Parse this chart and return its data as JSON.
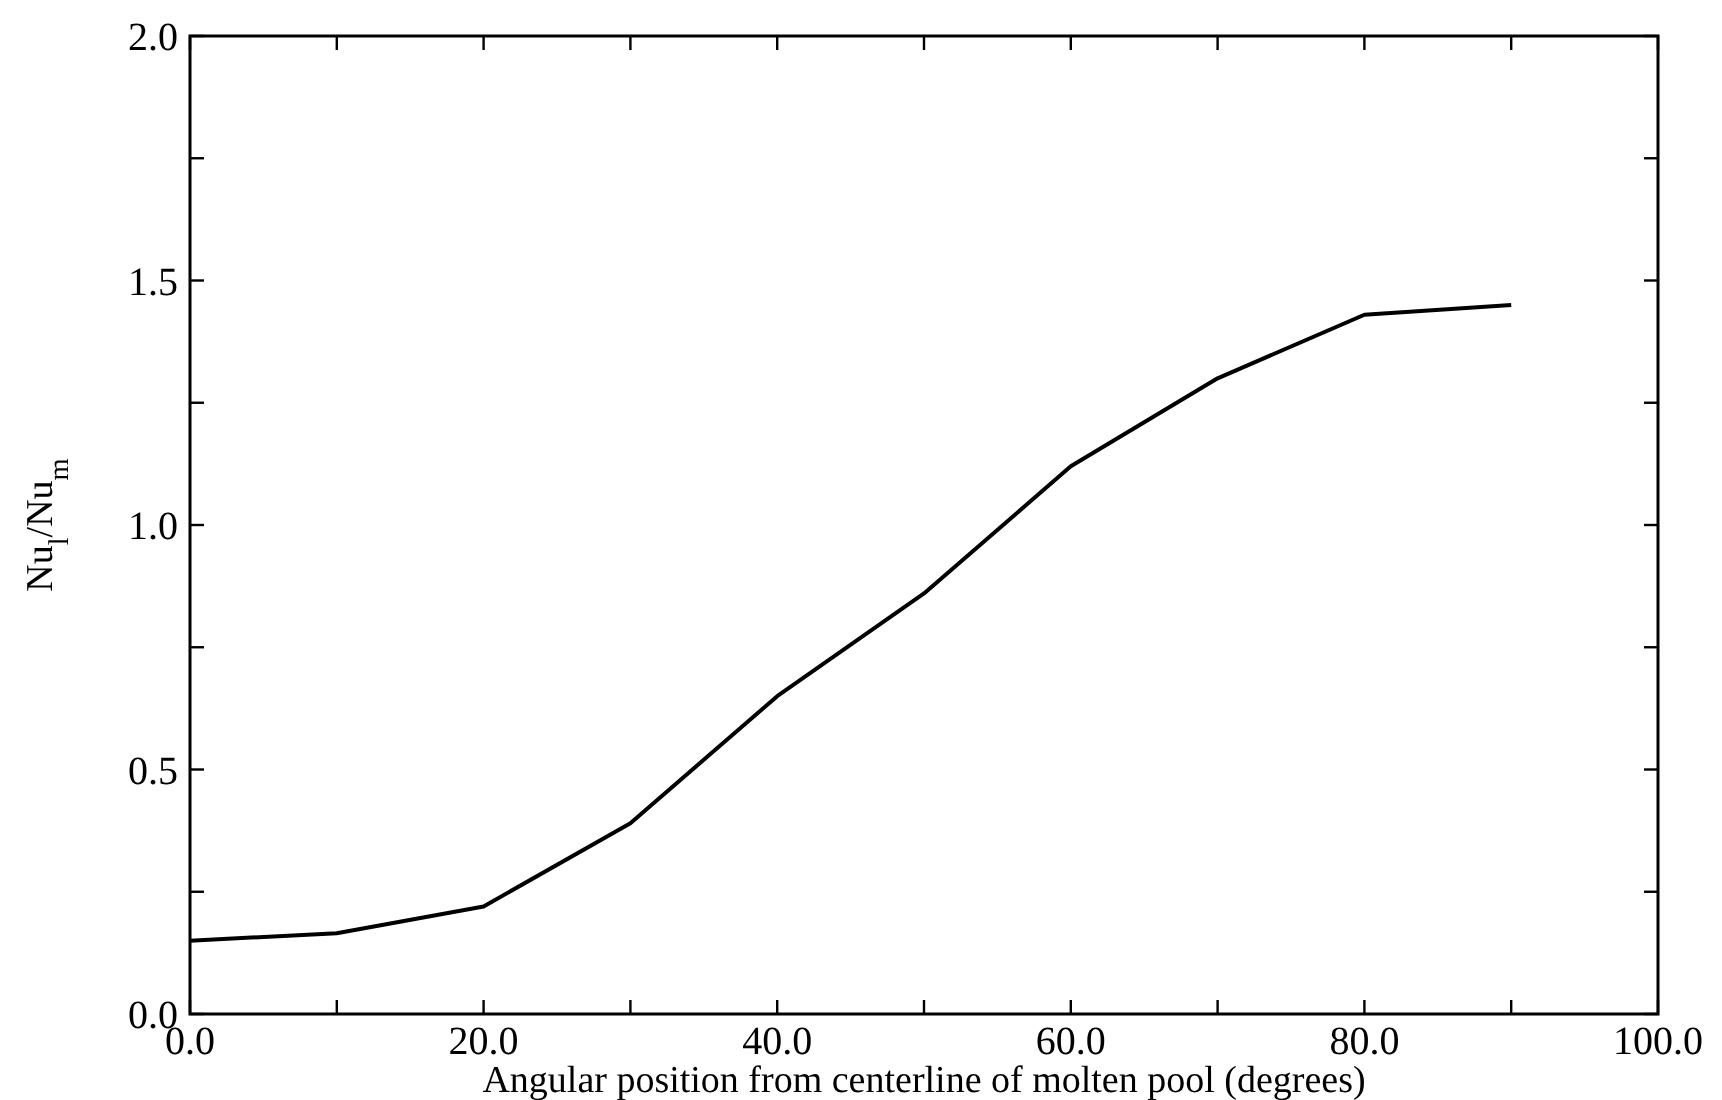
{
  "chart_data": {
    "type": "line",
    "xlabel": "Angular position from centerline of molten pool (degrees)",
    "ylabel": "Nu$_{l}$/Nu$_{m}$",
    "x": [
      0,
      10,
      20,
      30,
      40,
      50,
      60,
      70,
      80,
      90
    ],
    "series": [
      {
        "color": "#000000",
        "values": [
          0.15,
          0.165,
          0.22,
          0.39,
          0.65,
          0.86,
          1.12,
          1.3,
          1.43,
          1.45
        ]
      }
    ],
    "xlim": [
      0,
      100
    ],
    "ylim": [
      0,
      2
    ],
    "xticks": [
      {
        "value": 0,
        "label": "0.0"
      },
      {
        "value": 10,
        "label": null
      },
      {
        "value": 20,
        "label": "20.0"
      },
      {
        "value": 30,
        "label": null
      },
      {
        "value": 40,
        "label": "40.0"
      },
      {
        "value": 50,
        "label": null
      },
      {
        "value": 60,
        "label": "60.0"
      },
      {
        "value": 70,
        "label": null
      },
      {
        "value": 80,
        "label": "80.0"
      },
      {
        "value": 90,
        "label": null
      },
      {
        "value": 100,
        "label": "100.0"
      }
    ],
    "yticks": [
      {
        "value": 0,
        "label": "0.0"
      },
      {
        "value": 0.25,
        "label": null
      },
      {
        "value": 0.5,
        "label": "0.5"
      },
      {
        "value": 0.75,
        "label": null
      },
      {
        "value": 1,
        "label": "1.0"
      },
      {
        "value": 1.25,
        "label": null
      },
      {
        "value": 1.5,
        "label": "1.5"
      },
      {
        "value": 1.75,
        "label": null
      },
      {
        "value": 2,
        "label": "2.0"
      }
    ],
    "grid": false,
    "marker": "none",
    "line_style": "solid"
  }
}
